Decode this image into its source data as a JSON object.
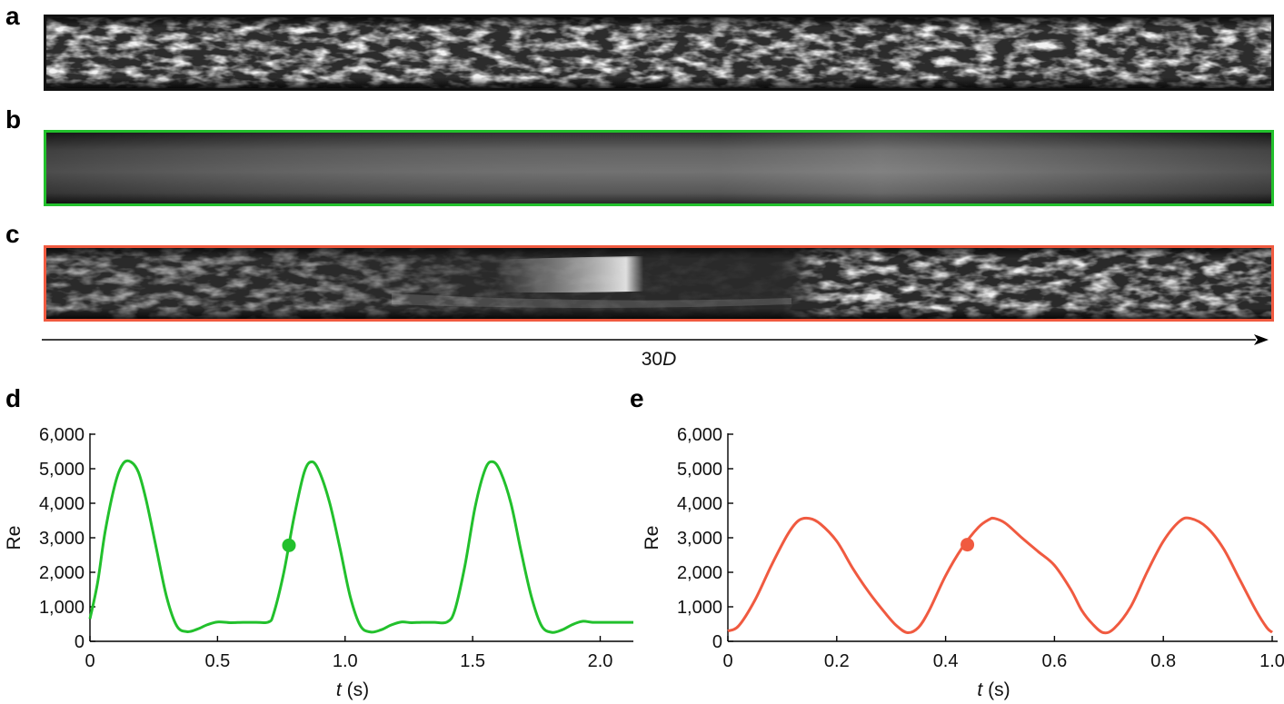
{
  "panels": {
    "a": {
      "letter": "a"
    },
    "b": {
      "letter": "b"
    },
    "c": {
      "letter": "c"
    },
    "d": {
      "letter": "d"
    },
    "e": {
      "letter": "e"
    }
  },
  "colors": {
    "frame_a": "#111111",
    "frame_b": "#22c02c",
    "frame_c": "#f05a40",
    "series_d": "#22c02c",
    "series_e": "#f05a40"
  },
  "length_label": {
    "value": "30",
    "italic_part": "D"
  },
  "chart_data": [
    {
      "type": "line",
      "panel": "d",
      "xlabel_italic": "t",
      "xlabel_unit": " (s)",
      "ylabel": "Re",
      "xlim": [
        0,
        2.13
      ],
      "ylim": [
        0,
        6000
      ],
      "x_ticks": [
        0,
        0.5,
        1.0,
        1.5,
        2.0
      ],
      "x_tick_labels": [
        "0",
        "0.5",
        "1.0",
        "1.5",
        "2.0"
      ],
      "y_ticks": [
        0,
        1000,
        2000,
        3000,
        4000,
        5000,
        6000
      ],
      "y_tick_labels": [
        "0",
        "1,000",
        "2,000",
        "3,000",
        "4,000",
        "5,000",
        "6,000"
      ],
      "grid": false,
      "series": [
        {
          "x": [
            0,
            0.03,
            0.06,
            0.1,
            0.13,
            0.16,
            0.19,
            0.22,
            0.26,
            0.3,
            0.34,
            0.38,
            0.42,
            0.46,
            0.5,
            0.55,
            0.6,
            0.65,
            0.7,
            0.72,
            0.76,
            0.8,
            0.84,
            0.87,
            0.9,
            0.94,
            0.98,
            1.02,
            1.06,
            1.1,
            1.14,
            1.18,
            1.22,
            1.26,
            1.3,
            1.35,
            1.4,
            1.43,
            1.47,
            1.51,
            1.55,
            1.58,
            1.61,
            1.65,
            1.69,
            1.73,
            1.77,
            1.81,
            1.85,
            1.89,
            1.93,
            1.97,
            2.02,
            2.07,
            2.13
          ],
          "y": [
            650,
            1700,
            3200,
            4600,
            5150,
            5200,
            4900,
            4100,
            2700,
            1300,
            450,
            280,
            350,
            480,
            560,
            540,
            550,
            550,
            560,
            800,
            2000,
            3600,
            4900,
            5200,
            4900,
            4000,
            2700,
            1300,
            450,
            270,
            330,
            470,
            560,
            540,
            550,
            550,
            560,
            900,
            2200,
            3900,
            5000,
            5200,
            4900,
            4000,
            2600,
            1300,
            450,
            260,
            330,
            480,
            580,
            550,
            550,
            550,
            550
          ]
        }
      ],
      "marker": {
        "x": 0.78,
        "y": 2780
      }
    },
    {
      "type": "line",
      "panel": "e",
      "xlabel_italic": "t",
      "xlabel_unit": " (s)",
      "ylabel": "Re",
      "xlim": [
        0,
        1.01
      ],
      "ylim": [
        0,
        6000
      ],
      "x_ticks": [
        0,
        0.2,
        0.4,
        0.6,
        0.8,
        1.0
      ],
      "x_tick_labels": [
        "0",
        "0.2",
        "0.4",
        "0.6",
        "0.8",
        "1.0"
      ],
      "y_ticks": [
        0,
        1000,
        2000,
        3000,
        4000,
        5000,
        6000
      ],
      "y_tick_labels": [
        "0",
        "1,000",
        "2,000",
        "3,000",
        "4,000",
        "5,000",
        "6,000"
      ],
      "grid": false,
      "series": [
        {
          "x": [
            0,
            0.02,
            0.05,
            0.08,
            0.11,
            0.13,
            0.15,
            0.17,
            0.2,
            0.23,
            0.26,
            0.29,
            0.31,
            0.33,
            0.35,
            0.37,
            0.4,
            0.43,
            0.46,
            0.48,
            0.49,
            0.51,
            0.54,
            0.57,
            0.6,
            0.63,
            0.65,
            0.67,
            0.69,
            0.71,
            0.74,
            0.77,
            0.8,
            0.83,
            0.85,
            0.88,
            0.91,
            0.94,
            0.97,
            0.99,
            1.0
          ],
          "y": [
            300,
            450,
            1200,
            2200,
            3100,
            3500,
            3560,
            3400,
            2900,
            2100,
            1400,
            800,
            450,
            250,
            400,
            900,
            1900,
            2700,
            3300,
            3530,
            3560,
            3420,
            3000,
            2600,
            2200,
            1500,
            900,
            500,
            250,
            380,
            1000,
            2000,
            2900,
            3480,
            3560,
            3300,
            2700,
            1800,
            900,
            400,
            260
          ]
        }
      ],
      "marker": {
        "x": 0.44,
        "y": 2800
      }
    }
  ]
}
